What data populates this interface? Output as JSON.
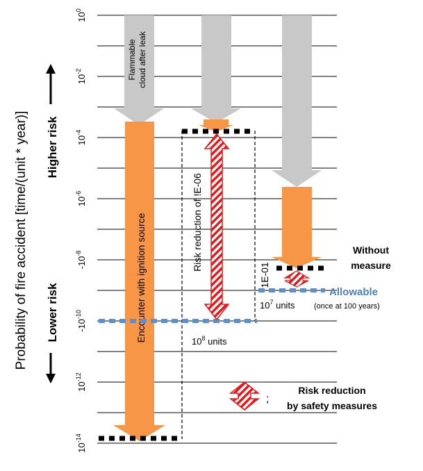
{
  "y_axis": {
    "title": "Probability of fire accident [time/(unit * year)]",
    "higher_risk": "Higher risk",
    "lower_risk": "Lower risk",
    "ticks": [
      {
        "base": "10",
        "exp": "0"
      },
      {
        "base": "10",
        "exp": "-2"
      },
      {
        "base": "10",
        "exp": "-4"
      },
      {
        "base": "10",
        "exp": "-6"
      },
      {
        "base": "-10",
        "exp": "-8"
      },
      {
        "base": "-10",
        "exp": "-10"
      },
      {
        "base": "10",
        "exp": "-12"
      },
      {
        "base": "10",
        "exp": "-14"
      }
    ]
  },
  "arrows": {
    "leak_label_1": "Flammable",
    "leak_label_2": "cloud after leak",
    "ignition_label": "Encounter with ignition source",
    "risk_reduction_label": "Risk reduction of !E-06",
    "small_reduction_label": "1E-01"
  },
  "annotations": {
    "units_1e8_base": "10",
    "units_1e8_exp": "8",
    "units_1e8_suffix": " units",
    "units_1e7_base": "10",
    "units_1e7_exp": "7",
    "units_1e7_suffix": " units",
    "once_at_100_years": "(once at 100 years)",
    "without_1": "Without",
    "without_2": "measure",
    "allowable": "Allowable"
  },
  "legend": {
    "separator": ";",
    "line1": "Risk reduction",
    "line2": "by safety measures"
  },
  "colors": {
    "orange": "#F79646",
    "gray": "#C8C8C8",
    "blue_dash": "#5B8FD4",
    "allowable_text": "#4F81BD",
    "red": "#E31A1C"
  }
}
